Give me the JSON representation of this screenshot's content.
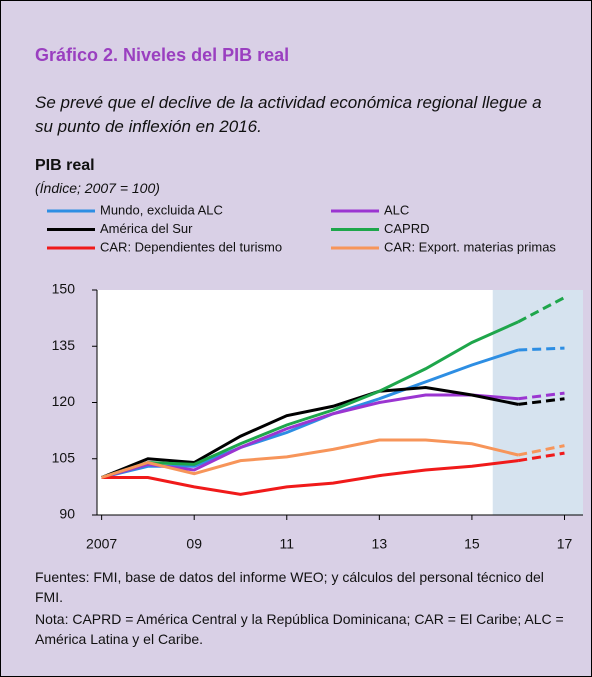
{
  "chart_data": {
    "type": "line",
    "title": "Gráfico 2. Niveles del PIB real",
    "subtitle": "Se prevé que el declive de la actividad económica regional llegue a su punto de inflexión en 2016.",
    "chart_title": "PIB real",
    "y_label": "(Índice; 2007 = 100)",
    "x": [
      2007,
      2008,
      2009,
      2010,
      2011,
      2012,
      2013,
      2014,
      2015,
      2016,
      2017
    ],
    "series": [
      {
        "name": "Mundo, excluida ALC",
        "color": "#2d8ee3",
        "values": [
          100,
          103,
          103,
          108,
          112,
          117,
          121,
          125.5,
          130,
          134,
          134.5
        ]
      },
      {
        "name": "ALC",
        "color": "#9b35d1",
        "values": [
          100,
          103.5,
          102,
          108,
          113,
          117,
          120,
          122,
          122,
          121,
          122.5
        ]
      },
      {
        "name": "América del Sur",
        "color": "#000000",
        "values": [
          100,
          105,
          104,
          111,
          116.5,
          119,
          123,
          124,
          122,
          119.5,
          121
        ]
      },
      {
        "name": "CAPRD",
        "color": "#1ea64b",
        "values": [
          100,
          104,
          103.5,
          109,
          114,
          118,
          123,
          129,
          136,
          141.5,
          148
        ]
      },
      {
        "name": "CAR: Dependientes del turismo",
        "color": "#f01a1a",
        "values": [
          100,
          100,
          97.5,
          95.5,
          97.5,
          98.5,
          100.5,
          102,
          103,
          104.5,
          106.5
        ]
      },
      {
        "name": "CAR: Export. materias primas",
        "color": "#f7955a",
        "values": [
          100,
          104,
          101,
          104.5,
          105.5,
          107.5,
          110,
          110,
          109,
          106,
          108.5
        ]
      }
    ],
    "dashed_from_x": 2016,
    "shaded_x": [
      2015.45,
      2017.4
    ],
    "xlim": [
      2006.9,
      2017.4
    ],
    "xticks": [
      2007,
      {
        "value": 2009,
        "label": "09"
      },
      {
        "value": 2011,
        "label": "11"
      },
      {
        "value": 2013,
        "label": "13"
      },
      {
        "value": 2015,
        "label": "15"
      },
      {
        "value": 2017,
        "label": "17"
      }
    ],
    "ylim": [
      90,
      150
    ],
    "yticks": [
      90,
      105,
      120,
      135,
      150
    ],
    "source": "Fuentes: FMI, base de datos del informe WEO; y cálculos del personal técnico del FMI.",
    "note": "Nota: CAPRD = América Central y la República Dominicana; CAR = El Caribe; ALC = América Latina y el Caribe."
  }
}
